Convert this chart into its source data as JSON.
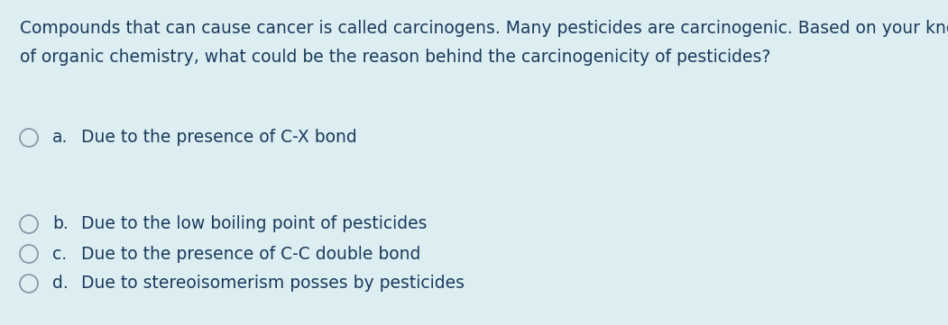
{
  "background_color": "#ddeef2",
  "text_color": "#1a3a5c",
  "question_line1": "Compounds that can cause cancer is called carcinogens. Many pesticides are carcinogenic. Based on your knowledge",
  "question_line2": "of organic chemistry, what could be the reason behind the carcinogenicity of pesticides?",
  "options": [
    {
      "label": "a.",
      "text": "Due to the presence of C-X bond"
    },
    {
      "label": "b.",
      "text": "Due to the low boiling point of pesticides"
    },
    {
      "label": "c.",
      "text": "Due to the presence of C-C double bond"
    },
    {
      "label": "d.",
      "text": "Due to stereoisomerism posses by pesticides"
    }
  ],
  "question_fontsize": 13.5,
  "option_fontsize": 13.5,
  "fig_width": 10.51,
  "fig_height": 3.61,
  "dpi": 100
}
